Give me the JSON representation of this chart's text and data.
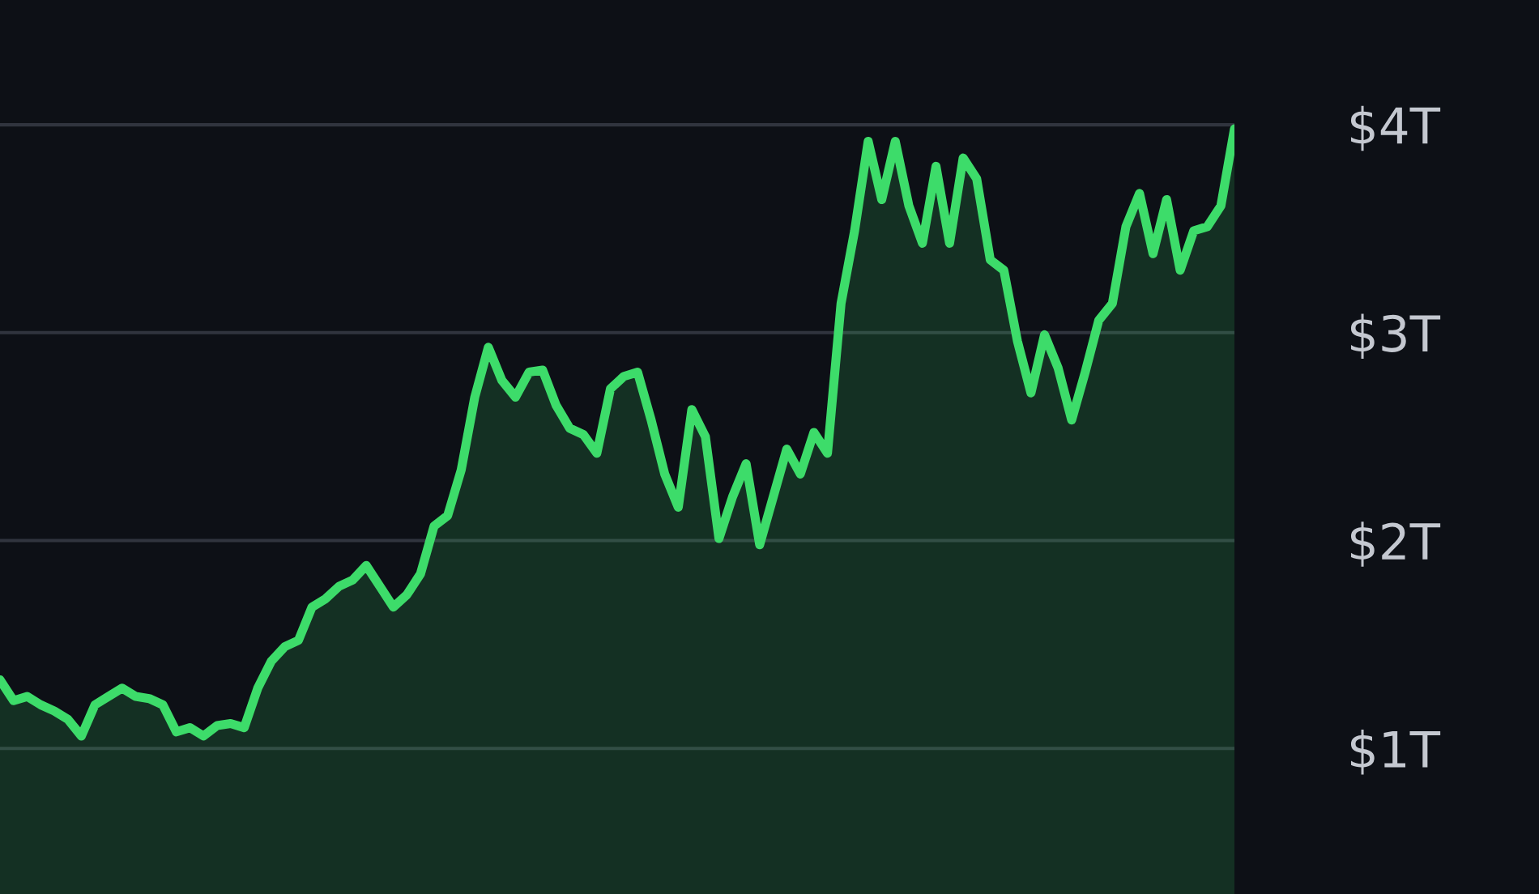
{
  "chart_data": {
    "type": "area",
    "categories": [
      null,
      null,
      null,
      null,
      null,
      null,
      null,
      null,
      null,
      null,
      null,
      null,
      null,
      null,
      null,
      null,
      null,
      null,
      null,
      null,
      null,
      null,
      null,
      null,
      null,
      null,
      null,
      null,
      null,
      null,
      null,
      null,
      null,
      null,
      null,
      null,
      null,
      null,
      null,
      null,
      null,
      null,
      null,
      null,
      null,
      null,
      null,
      null,
      null,
      null,
      null,
      null,
      null,
      null,
      null,
      null,
      null,
      null,
      null,
      null,
      null,
      null,
      null,
      null,
      null,
      null,
      null,
      null,
      null,
      null,
      null,
      null,
      null,
      null,
      null,
      null,
      null,
      null,
      null,
      null,
      null,
      null,
      null,
      null,
      null,
      null,
      null,
      null,
      null,
      null,
      null,
      null
    ],
    "series": [
      {
        "color": "#3ddc6a",
        "values": [
          1.33,
          1.23,
          1.25,
          1.21,
          1.18,
          1.14,
          1.06,
          1.21,
          1.25,
          1.29,
          1.25,
          1.24,
          1.21,
          1.08,
          1.1,
          1.06,
          1.11,
          1.12,
          1.1,
          1.29,
          1.42,
          1.49,
          1.52,
          1.68,
          1.72,
          1.78,
          1.81,
          1.88,
          1.78,
          1.68,
          1.74,
          1.84,
          2.07,
          2.12,
          2.34,
          2.69,
          2.93,
          2.77,
          2.69,
          2.81,
          2.82,
          2.65,
          2.54,
          2.51,
          2.42,
          2.73,
          2.79,
          2.81,
          2.58,
          2.32,
          2.16,
          2.63,
          2.5,
          2.01,
          2.21,
          2.37,
          1.98,
          2.21,
          2.44,
          2.32,
          2.52,
          2.42,
          3.14,
          3.49,
          3.92,
          3.64,
          3.92,
          3.61,
          3.43,
          3.8,
          3.43,
          3.84,
          3.74,
          3.35,
          3.3,
          2.96,
          2.71,
          2.99,
          2.83,
          2.58,
          2.81,
          3.06,
          3.14,
          3.51,
          3.67,
          3.38,
          3.64,
          3.3,
          3.49,
          3.51,
          3.61,
          3.98
        ]
      }
    ],
    "ylim": [
      0.3,
      4.6
    ],
    "yticks": [
      {
        "value": 1,
        "label": "$1T"
      },
      {
        "value": 2,
        "label": "$2T"
      },
      {
        "value": 3,
        "label": "$3T"
      },
      {
        "value": 4,
        "label": "$4T"
      }
    ],
    "grid": "y",
    "legend": false,
    "tick_labels": "y",
    "marker": "none",
    "line_style": "solid"
  }
}
